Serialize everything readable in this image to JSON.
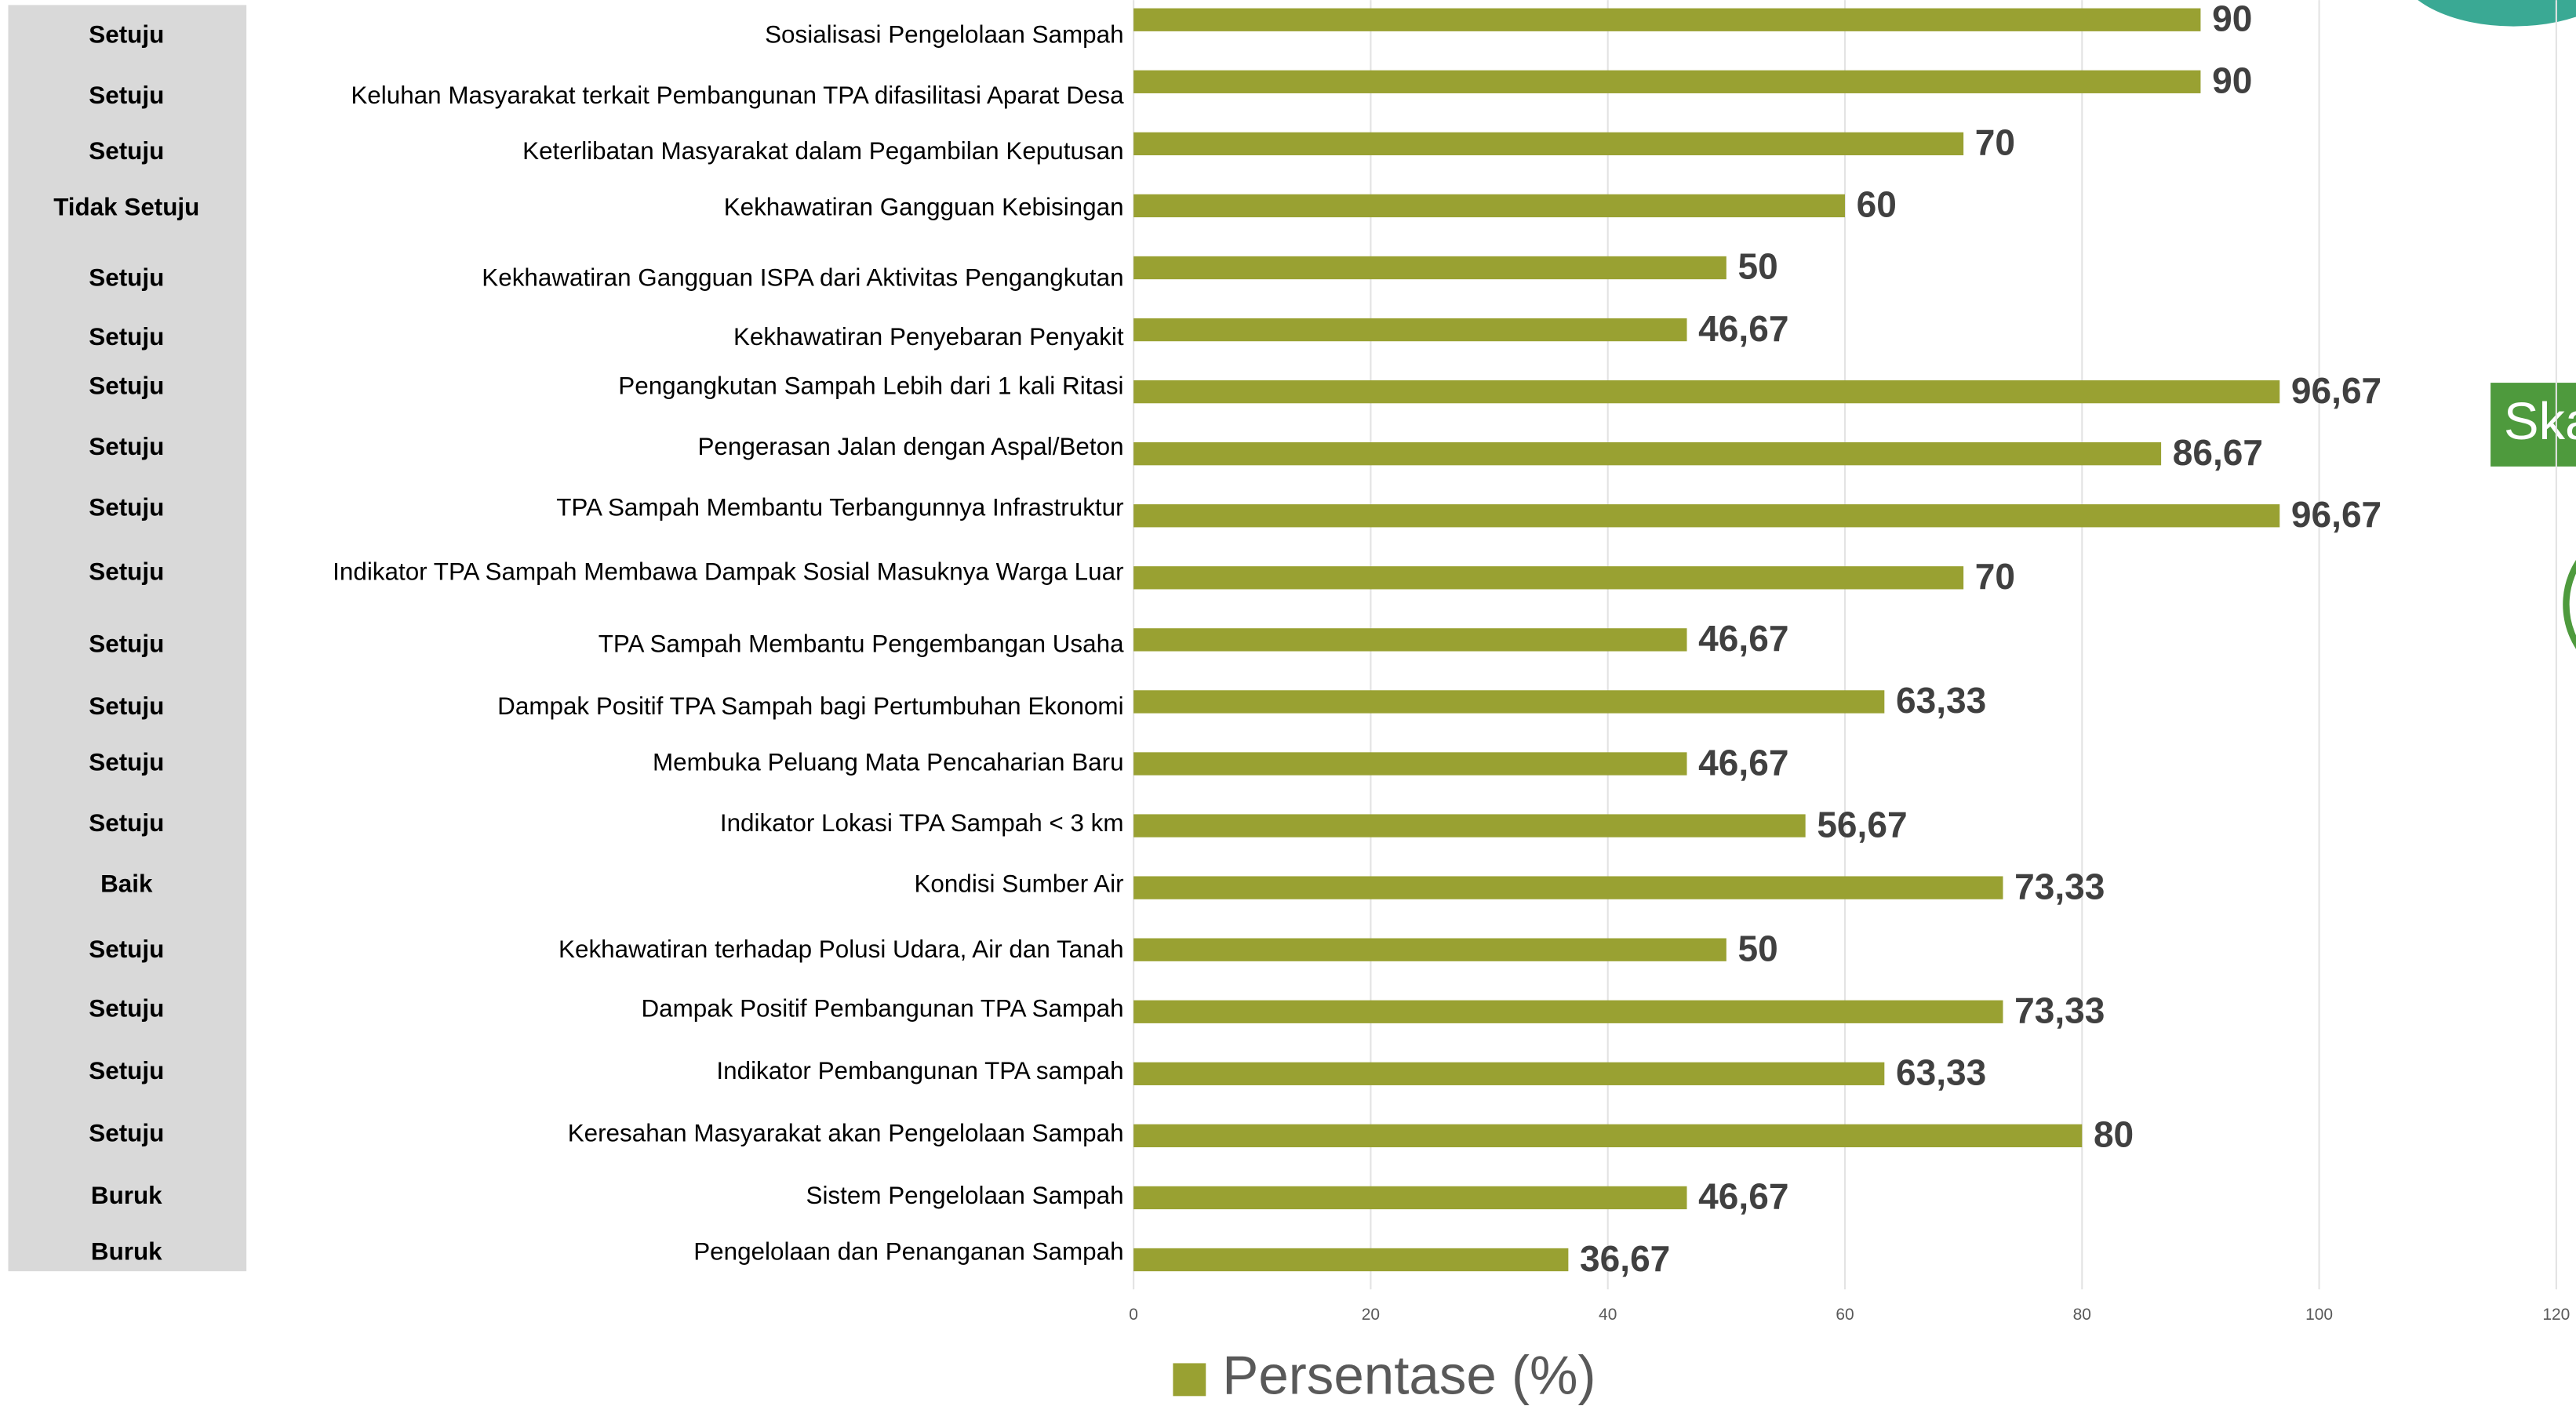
{
  "chart_data": {
    "type": "bar",
    "orientation": "horizontal",
    "categories": [
      "Sosialisasi Pengelolaan Sampah",
      "Keluhan Masyarakat terkait Pembangunan TPA difasilitasi Aparat Desa",
      "Keterlibatan Masyarakat dalam Pegambilan Keputusan",
      "Kekhawatiran Gangguan Kebisingan",
      "Kekhawatiran Gangguan ISPA dari Aktivitas Pengangkutan",
      "Kekhawatiran Penyebaran Penyakit",
      "Pengangkutan Sampah Lebih dari 1 kali Ritasi",
      "Pengerasan Jalan dengan Aspal/Beton",
      "TPA Sampah Membantu Terbangunnya Infrastruktur",
      "Indikator TPA Sampah Membawa Dampak Sosial Masuknya Warga Luar",
      "TPA Sampah Membantu Pengembangan Usaha",
      "Dampak Positif TPA Sampah bagi Pertumbuhan Ekonomi",
      "Membuka Peluang Mata Pencaharian Baru",
      "Indikator Lokasi TPA Sampah < 3 km",
      "Kondisi Sumber Air",
      "Kekhawatiran terhadap Polusi Udara, Air dan Tanah",
      "Dampak Positif Pembangunan TPA Sampah",
      "Indikator Pembangunan TPA sampah",
      "Keresahan Masyarakat akan Pengelolaan Sampah",
      "Sistem Pengelolaan Sampah",
      "Pengelolaan dan Penanganan Sampah"
    ],
    "status_labels": [
      "Setuju",
      "Setuju",
      "Setuju",
      "Tidak Setuju",
      "Setuju",
      "Setuju",
      "Setuju",
      "Setuju",
      "Setuju",
      "Setuju",
      "Setuju",
      "Setuju",
      "Setuju",
      "Setuju",
      "Baik",
      "Setuju",
      "Setuju",
      "Setuju",
      "Setuju",
      "Buruk",
      "Buruk"
    ],
    "series": [
      {
        "name": "Persentase (%)",
        "color": "#99a132",
        "values": [
          90,
          90,
          70,
          60,
          50,
          46.67,
          96.67,
          86.67,
          96.67,
          70,
          46.67,
          63.33,
          46.67,
          56.67,
          73.33,
          50,
          73.33,
          63.33,
          80,
          46.67,
          36.67
        ],
        "value_labels": [
          "90",
          "90",
          "70",
          "60",
          "50",
          "46,67",
          "96,67",
          "86,67",
          "96,67",
          "70",
          "46,67",
          "63,33",
          "46,67",
          "56,67",
          "73,33",
          "50",
          "73,33",
          "63,33",
          "80",
          "46,67",
          "36,67"
        ]
      }
    ],
    "xlim": [
      0,
      120
    ],
    "xticks": [
      0,
      20,
      40,
      60,
      80,
      100,
      120
    ],
    "grid": true,
    "legend": "bottom",
    "side_label": "Ska"
  }
}
